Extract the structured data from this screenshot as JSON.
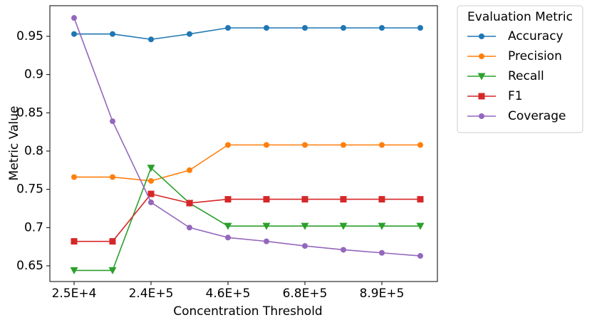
{
  "chart_data": {
    "type": "line",
    "xlabel": "Concentration Threshold",
    "ylabel": "Metric Value",
    "categories": [
      "2.5E+4",
      null,
      "2.4E+5",
      null,
      "4.6E+5",
      null,
      "6.8E+5",
      null,
      "8.9E+5",
      null
    ],
    "ylim": [
      0.6295,
      0.99
    ],
    "yticks": [
      0.65,
      0.7,
      0.75,
      0.8,
      0.85,
      0.9,
      0.95
    ],
    "legend_title": "Evaluation Metric",
    "legend_position": "outside-upper-right",
    "series": [
      {
        "name": "Accuracy",
        "color": "#1f77b4",
        "marker": "circle",
        "values": [
          0.953,
          0.953,
          0.946,
          0.953,
          0.961,
          0.961,
          0.961,
          0.961,
          0.961,
          0.961
        ]
      },
      {
        "name": "Precision",
        "color": "#ff7f0e",
        "marker": "circle",
        "values": [
          0.766,
          0.766,
          0.761,
          0.775,
          0.808,
          0.808,
          0.808,
          0.808,
          0.808,
          0.808
        ]
      },
      {
        "name": "Recall",
        "color": "#2ca02c",
        "marker": "triangle-down",
        "values": [
          0.644,
          0.644,
          0.778,
          0.732,
          0.702,
          0.702,
          0.702,
          0.702,
          0.702,
          0.702
        ]
      },
      {
        "name": "F1",
        "color": "#d62728",
        "marker": "square",
        "values": [
          0.682,
          0.682,
          0.744,
          0.732,
          0.737,
          0.737,
          0.737,
          0.737,
          0.737,
          0.737
        ]
      },
      {
        "name": "Coverage",
        "color": "#9467bd",
        "marker": "circle",
        "values": [
          0.974,
          0.839,
          0.733,
          0.7,
          0.687,
          0.682,
          0.676,
          0.671,
          0.667,
          0.663
        ]
      }
    ]
  }
}
